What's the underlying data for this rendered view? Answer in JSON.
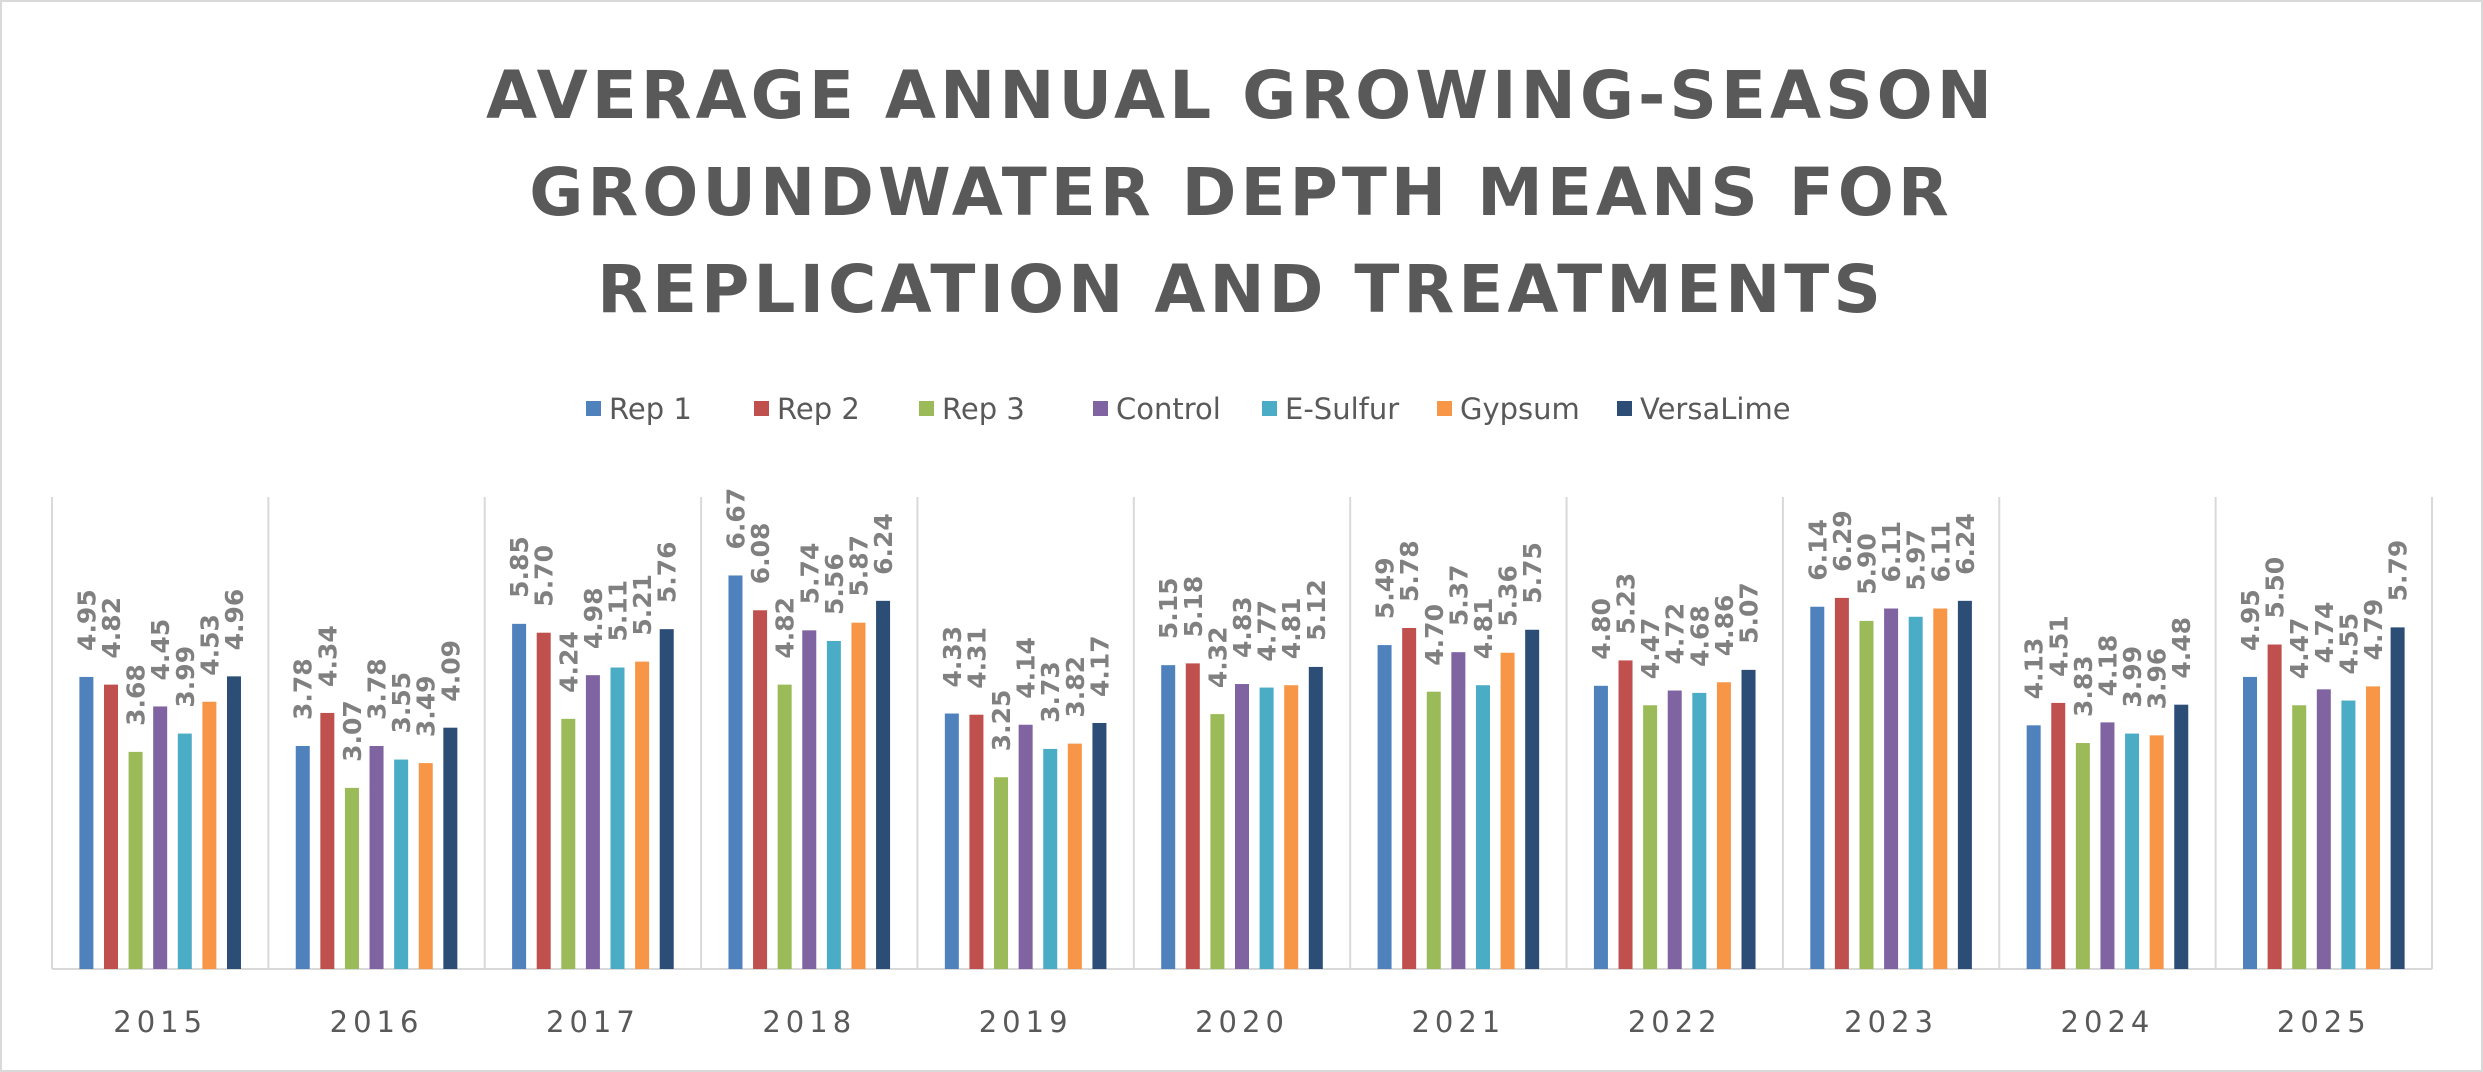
{
  "chart_data": {
    "type": "bar",
    "title_lines": [
      "AVERAGE ANNUAL GROWING-SEASON",
      "GROUNDWATER DEPTH MEANS FOR",
      "REPLICATION AND TREATMENTS"
    ],
    "xlabel": "",
    "ylabel": "",
    "ylim": [
      0,
      8
    ],
    "grid": "vertical category separators",
    "legend_position": "top",
    "categories": [
      "2015",
      "2016",
      "2017",
      "2018",
      "2019",
      "2020",
      "2021",
      "2022",
      "2023",
      "2024",
      "2025"
    ],
    "series": [
      {
        "name": "Rep 1",
        "color": "#4F81BD",
        "values": [
          4.95,
          3.78,
          5.85,
          6.67,
          4.33,
          5.15,
          5.49,
          4.8,
          6.14,
          4.13,
          4.95
        ]
      },
      {
        "name": "Rep 2",
        "color": "#C0504D",
        "values": [
          4.82,
          4.34,
          5.7,
          6.08,
          4.31,
          5.18,
          5.78,
          5.23,
          6.29,
          4.51,
          5.5
        ]
      },
      {
        "name": "Rep 3",
        "color": "#9BBB59",
        "values": [
          3.68,
          3.07,
          4.24,
          4.82,
          3.25,
          4.32,
          4.7,
          4.47,
          5.9,
          3.83,
          4.47
        ]
      },
      {
        "name": "Control",
        "color": "#8064A2",
        "values": [
          4.45,
          3.78,
          4.98,
          5.74,
          4.14,
          4.83,
          5.37,
          4.72,
          6.11,
          4.18,
          4.74
        ]
      },
      {
        "name": "E-Sulfur",
        "color": "#4BACC6",
        "values": [
          3.99,
          3.55,
          5.11,
          5.56,
          3.73,
          4.77,
          4.81,
          4.68,
          5.97,
          3.99,
          4.55
        ]
      },
      {
        "name": "Gypsum",
        "color": "#F79646",
        "values": [
          4.53,
          3.49,
          5.21,
          5.87,
          3.82,
          4.81,
          5.36,
          4.86,
          6.11,
          3.96,
          4.79
        ]
      },
      {
        "name": "VersaLime",
        "color": "#2C4D75",
        "values": [
          4.96,
          4.09,
          5.76,
          6.24,
          4.17,
          5.12,
          5.75,
          5.07,
          6.24,
          4.48,
          5.79
        ]
      }
    ]
  }
}
